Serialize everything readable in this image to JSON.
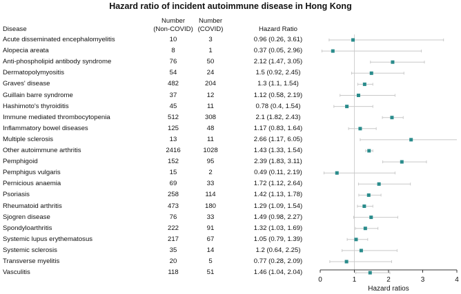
{
  "chart_data": {
    "type": "forest",
    "title": "Hazard ratio of incident autoimmune disease in Hong Kong",
    "columns": {
      "disease": "Disease",
      "non_covid": "Number\n(Non-COVID)",
      "covid": "Number\n(COVID)",
      "hr": "Hazard Ratio"
    },
    "xlabel": "Hazard ratios",
    "xlim": [
      0,
      4
    ],
    "xticks": [
      0,
      1,
      2,
      3,
      4
    ],
    "reference_line": 1,
    "colors": {
      "point": "#2a8c8c",
      "ci": "#c8c8c8",
      "ref": "#d0d0d0",
      "axis": "#333333"
    },
    "rows": [
      {
        "disease": "Acute disseminated encephalomyelitis",
        "non_covid": "10",
        "covid": "3",
        "hr_text": "0.96 (0.26, 3.61)",
        "hr": 0.96,
        "lo": 0.26,
        "hi": 3.61
      },
      {
        "disease": "Alopecia areata",
        "non_covid": "8",
        "covid": "1",
        "hr_text": "0.37 (0.05, 2.96)",
        "hr": 0.37,
        "lo": 0.05,
        "hi": 2.96
      },
      {
        "disease": "Anti-phospholipid antibody syndrome",
        "non_covid": "76",
        "covid": "50",
        "hr_text": "2.12 (1.47, 3.05)",
        "hr": 2.12,
        "lo": 1.47,
        "hi": 3.05
      },
      {
        "disease": "Dermatopolymyositis",
        "non_covid": "54",
        "covid": "24",
        "hr_text": "1.5 (0.92, 2.45)",
        "hr": 1.5,
        "lo": 0.92,
        "hi": 2.45
      },
      {
        "disease": "Graves' disease",
        "non_covid": "482",
        "covid": "204",
        "hr_text": "1.3 (1.1, 1.54)",
        "hr": 1.3,
        "lo": 1.1,
        "hi": 1.54
      },
      {
        "disease": "Guillain barre syndrome",
        "non_covid": "37",
        "covid": "12",
        "hr_text": "1.12 (0.58, 2.19)",
        "hr": 1.12,
        "lo": 0.58,
        "hi": 2.19
      },
      {
        "disease": "Hashimoto's thyroiditis",
        "non_covid": "45",
        "covid": "11",
        "hr_text": "0.78 (0.4, 1.54)",
        "hr": 0.78,
        "lo": 0.4,
        "hi": 1.54
      },
      {
        "disease": "Immune mediated thrombocytopenia",
        "non_covid": "512",
        "covid": "308",
        "hr_text": "2.1 (1.82, 2.43)",
        "hr": 2.1,
        "lo": 1.82,
        "hi": 2.43
      },
      {
        "disease": "Inflammatory bowel diseases",
        "non_covid": "125",
        "covid": "48",
        "hr_text": "1.17 (0.83, 1.64)",
        "hr": 1.17,
        "lo": 0.83,
        "hi": 1.64
      },
      {
        "disease": "Multiple sclerosis",
        "non_covid": "13",
        "covid": "11",
        "hr_text": "2.66 (1.17, 6.05)",
        "hr": 2.66,
        "lo": 1.17,
        "hi": 6.05
      },
      {
        "disease": "Other autoimmune arthritis",
        "non_covid": "2416",
        "covid": "1028",
        "hr_text": "1.43 (1.33, 1.54)",
        "hr": 1.43,
        "lo": 1.33,
        "hi": 1.54
      },
      {
        "disease": "Pemphigoid",
        "non_covid": "152",
        "covid": "95",
        "hr_text": "2.39 (1.83, 3.11)",
        "hr": 2.39,
        "lo": 1.83,
        "hi": 3.11
      },
      {
        "disease": "Pemphigus vulgaris",
        "non_covid": "15",
        "covid": "2",
        "hr_text": "0.49 (0.11, 2.19)",
        "hr": 0.49,
        "lo": 0.11,
        "hi": 2.19
      },
      {
        "disease": "Pernicious anaemia",
        "non_covid": "69",
        "covid": "33",
        "hr_text": "1.72 (1.12, 2.64)",
        "hr": 1.72,
        "lo": 1.12,
        "hi": 2.64
      },
      {
        "disease": "Psoriasis",
        "non_covid": "258",
        "covid": "114",
        "hr_text": "1.42 (1.13, 1.78)",
        "hr": 1.42,
        "lo": 1.13,
        "hi": 1.78
      },
      {
        "disease": "Rheumatoid arthritis",
        "non_covid": "473",
        "covid": "180",
        "hr_text": "1.29 (1.09, 1.54)",
        "hr": 1.29,
        "lo": 1.09,
        "hi": 1.54
      },
      {
        "disease": "Sjogren disease",
        "non_covid": "76",
        "covid": "33",
        "hr_text": "1.49 (0.98, 2.27)",
        "hr": 1.49,
        "lo": 0.98,
        "hi": 2.27
      },
      {
        "disease": "Spondyloarthritis",
        "non_covid": "222",
        "covid": "91",
        "hr_text": "1.32 (1.03, 1.69)",
        "hr": 1.32,
        "lo": 1.03,
        "hi": 1.69
      },
      {
        "disease": "Systemic lupus erythematosus",
        "non_covid": "217",
        "covid": "67",
        "hr_text": "1.05 (0.79, 1.39)",
        "hr": 1.05,
        "lo": 0.79,
        "hi": 1.39
      },
      {
        "disease": "Systemic sclerosis",
        "non_covid": "35",
        "covid": "14",
        "hr_text": "1.2 (0.64, 2.25)",
        "hr": 1.2,
        "lo": 0.64,
        "hi": 2.25
      },
      {
        "disease": "Transverse myelitis",
        "non_covid": "20",
        "covid": "5",
        "hr_text": "0.77 (0.28, 2.09)",
        "hr": 0.77,
        "lo": 0.28,
        "hi": 2.09
      },
      {
        "disease": "Vasculitis",
        "non_covid": "118",
        "covid": "51",
        "hr_text": "1.46 (1.04, 2.04)",
        "hr": 1.46,
        "lo": 1.04,
        "hi": 2.04
      }
    ]
  }
}
